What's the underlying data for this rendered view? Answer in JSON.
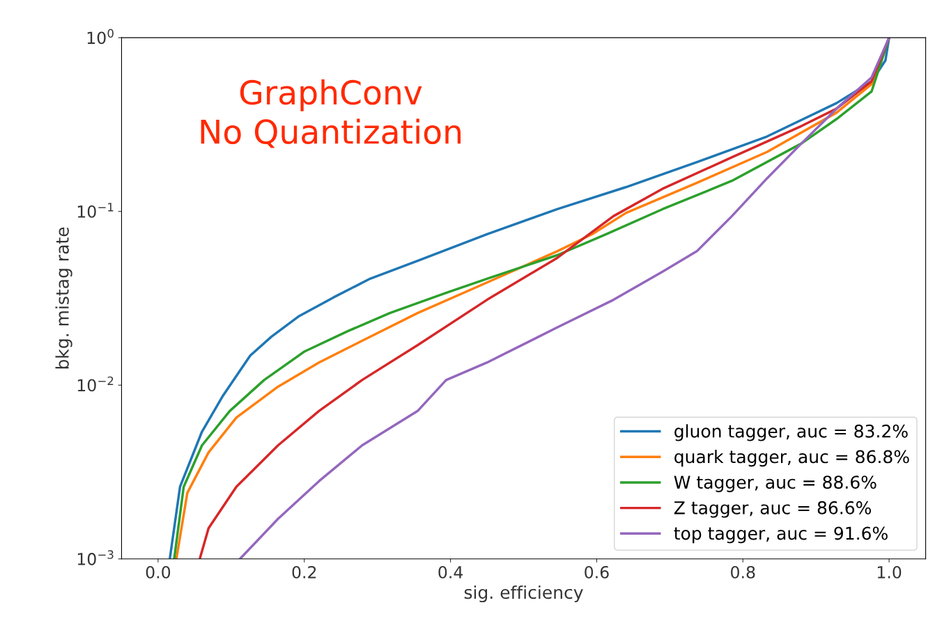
{
  "chart_data": {
    "type": "line",
    "xlabel": "sig. efficiency",
    "ylabel": "bkg. mistag rate",
    "annotations": [
      "GraphConv\nNo Quantization"
    ],
    "log": "y",
    "xlim": [
      -0.05,
      1.05
    ],
    "ylim": [
      0.001,
      1
    ],
    "xticks": [
      {
        "value": 0,
        "label": "0.0"
      },
      {
        "value": 0.2,
        "label": "0.2"
      },
      {
        "value": 0.4,
        "label": "0.4"
      },
      {
        "value": 0.6,
        "label": "0.6"
      },
      {
        "value": 0.8,
        "label": "0.8"
      },
      {
        "value": 1,
        "label": "1.0"
      }
    ],
    "yticks": [
      {
        "value": 0.001,
        "label": "10$^{−3}$"
      },
      {
        "value": 0.01,
        "label": "10$^{−2}$"
      },
      {
        "value": 0.1,
        "label": "10$^{−1}$"
      },
      {
        "value": 1,
        "label": "10$^{0}$"
      }
    ],
    "grid": false,
    "legend": "bottom right",
    "marker": "none",
    "line_style": "solid",
    "series": [
      {
        "name": "gluon tagger, auc = 83.2%",
        "color": "#1f77b4",
        "x": [
          0.016,
          0.03,
          0.06,
          0.088,
          0.126,
          0.155,
          0.193,
          0.24,
          0.29,
          0.355,
          0.45,
          0.546,
          0.64,
          0.737,
          0.833,
          0.928,
          0.976,
          0.995,
          1.0
        ],
        "values": [
          0.001,
          0.0026,
          0.0054,
          0.0086,
          0.0148,
          0.019,
          0.025,
          0.032,
          0.041,
          0.052,
          0.074,
          0.103,
          0.138,
          0.192,
          0.27,
          0.42,
          0.56,
          0.74,
          1
        ]
      },
      {
        "name": "quark tagger, auc = 86.8%",
        "color": "#ff7f0e",
        "x": [
          0.025,
          0.04,
          0.069,
          0.107,
          0.164,
          0.22,
          0.279,
          0.355,
          0.45,
          0.546,
          0.594,
          0.64,
          0.737,
          0.833,
          0.928,
          0.976,
          1.0
        ],
        "values": [
          0.001,
          0.0024,
          0.0041,
          0.0065,
          0.0098,
          0.0135,
          0.018,
          0.026,
          0.039,
          0.059,
          0.074,
          0.098,
          0.146,
          0.22,
          0.37,
          0.54,
          1
        ]
      },
      {
        "name": "W tagger, auc = 88.6%",
        "color": "#2ca02c",
        "x": [
          0.022,
          0.035,
          0.06,
          0.098,
          0.145,
          0.2,
          0.26,
          0.317,
          0.394,
          0.45,
          0.546,
          0.613,
          0.69,
          0.785,
          0.88,
          0.928,
          0.976,
          1.0
        ],
        "values": [
          0.001,
          0.0026,
          0.0045,
          0.0071,
          0.0107,
          0.0156,
          0.0205,
          0.026,
          0.034,
          0.041,
          0.056,
          0.074,
          0.103,
          0.15,
          0.246,
          0.34,
          0.49,
          1
        ]
      },
      {
        "name": "Z tagger, auc = 86.6%",
        "color": "#d62728",
        "x": [
          0.057,
          0.069,
          0.107,
          0.164,
          0.22,
          0.279,
          0.355,
          0.45,
          0.546,
          0.623,
          0.69,
          0.785,
          0.88,
          0.928,
          0.976,
          1.0
        ],
        "values": [
          0.001,
          0.0015,
          0.0026,
          0.0045,
          0.0071,
          0.0107,
          0.017,
          0.031,
          0.054,
          0.094,
          0.135,
          0.205,
          0.31,
          0.39,
          0.56,
          1
        ]
      },
      {
        "name": "top tagger, auc = 91.6%",
        "color": "#9467bd",
        "x": [
          0.112,
          0.164,
          0.22,
          0.279,
          0.355,
          0.394,
          0.45,
          0.546,
          0.623,
          0.69,
          0.737,
          0.785,
          0.833,
          0.88,
          0.928,
          0.976,
          1.0
        ],
        "values": [
          0.001,
          0.0017,
          0.0028,
          0.0045,
          0.0071,
          0.0107,
          0.0135,
          0.0215,
          0.031,
          0.045,
          0.059,
          0.094,
          0.155,
          0.246,
          0.39,
          0.59,
          1
        ]
      }
    ]
  }
}
